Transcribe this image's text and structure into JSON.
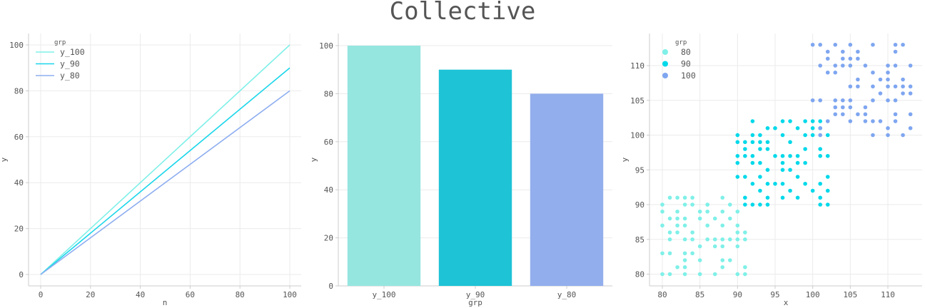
{
  "title": "Collective",
  "colors": {
    "y_100": "#7ff0e8",
    "y_90": "#1ad6ea",
    "y_80": "#8eaef0"
  },
  "chart_data": [
    {
      "type": "line",
      "xlabel": "n",
      "ylabel": "y",
      "xlim": [
        -5,
        105
      ],
      "ylim": [
        -5,
        105
      ],
      "xticks": [
        0,
        20,
        40,
        60,
        80,
        100
      ],
      "yticks": [
        0,
        20,
        40,
        60,
        80,
        100
      ],
      "grid": true,
      "legend": {
        "title": "grp",
        "position": "top-left"
      },
      "series": [
        {
          "name": "y_100",
          "x": [
            0,
            100
          ],
          "y": [
            0,
            100
          ],
          "color": "#7ff0e8"
        },
        {
          "name": "y_90",
          "x": [
            0,
            100
          ],
          "y": [
            0,
            90
          ],
          "color": "#1ad6ea"
        },
        {
          "name": "y_80",
          "x": [
            0,
            100
          ],
          "y": [
            0,
            80
          ],
          "color": "#8eaef0"
        }
      ]
    },
    {
      "type": "bar",
      "xlabel": "grp",
      "ylabel": "y",
      "categories": [
        "y_100",
        "y_90",
        "y_80"
      ],
      "values": [
        100,
        90,
        80
      ],
      "colors": [
        "#96e6e0",
        "#1ec3d6",
        "#92aeec"
      ],
      "ylim": [
        0,
        105
      ],
      "yticks": [
        0,
        20,
        40,
        60,
        80,
        100
      ],
      "grid": true
    },
    {
      "type": "scatter",
      "xlabel": "x",
      "ylabel": "y",
      "xlim": [
        78.5,
        115
      ],
      "ylim": [
        78.5,
        114.5
      ],
      "xticks": [
        80,
        85,
        90,
        95,
        100,
        105,
        110
      ],
      "yticks": [
        80,
        85,
        90,
        95,
        100,
        105,
        110
      ],
      "grid": true,
      "legend": {
        "title": "grp",
        "position": "top-left"
      },
      "series": [
        {
          "name": "80",
          "color": "#7ff0e8",
          "points": [
            [
              80,
              80
            ],
            [
              81,
              80
            ],
            [
              83,
              80
            ],
            [
              85,
              80
            ],
            [
              87,
              80
            ],
            [
              90,
              80
            ],
            [
              91,
              80
            ],
            [
              82,
              81
            ],
            [
              83,
              81
            ],
            [
              88,
              81
            ],
            [
              91,
              81
            ],
            [
              83,
              82
            ],
            [
              85,
              82
            ],
            [
              88,
              82
            ],
            [
              89,
              82
            ],
            [
              80,
              83
            ],
            [
              81,
              83
            ],
            [
              83,
              83
            ],
            [
              84,
              83
            ],
            [
              85,
              84
            ],
            [
              87,
              84
            ],
            [
              88,
              84
            ],
            [
              90,
              84
            ],
            [
              81,
              85
            ],
            [
              83,
              85
            ],
            [
              84,
              85
            ],
            [
              86,
              85
            ],
            [
              87,
              85
            ],
            [
              88,
              85
            ],
            [
              89,
              85
            ],
            [
              90,
              85
            ],
            [
              91,
              85
            ],
            [
              81,
              86
            ],
            [
              82,
              86
            ],
            [
              84,
              86
            ],
            [
              90,
              86
            ],
            [
              91,
              86
            ],
            [
              80,
              87
            ],
            [
              82,
              87
            ],
            [
              83,
              87
            ],
            [
              86,
              87
            ],
            [
              88,
              87
            ],
            [
              90,
              87
            ],
            [
              81,
              88
            ],
            [
              82,
              88
            ],
            [
              83,
              88
            ],
            [
              85,
              88
            ],
            [
              87,
              88
            ],
            [
              89,
              88
            ],
            [
              80,
              89
            ],
            [
              82,
              89
            ],
            [
              85,
              89
            ],
            [
              86,
              89
            ],
            [
              88,
              89
            ],
            [
              90,
              89
            ],
            [
              80,
              90
            ],
            [
              83,
              90
            ],
            [
              84,
              90
            ],
            [
              86,
              90
            ],
            [
              81,
              91
            ],
            [
              82,
              91
            ],
            [
              83,
              91
            ],
            [
              84,
              91
            ],
            [
              88,
              91
            ],
            [
              86,
              90
            ],
            [
              89,
              90
            ]
          ]
        },
        {
          "name": "90",
          "color": "#00d9ea",
          "points": [
            [
              91,
              90
            ],
            [
              92,
              90
            ],
            [
              93,
              90
            ],
            [
              94,
              90
            ],
            [
              101,
              90
            ],
            [
              102,
              90
            ],
            [
              91,
              91
            ],
            [
              94,
              91
            ],
            [
              96,
              91
            ],
            [
              98,
              91
            ],
            [
              101,
              91
            ],
            [
              93,
              92
            ],
            [
              97,
              92
            ],
            [
              100,
              92
            ],
            [
              102,
              92
            ],
            [
              92,
              93
            ],
            [
              94,
              93
            ],
            [
              95,
              93
            ],
            [
              96,
              93
            ],
            [
              99,
              93
            ],
            [
              101,
              93
            ],
            [
              90,
              94
            ],
            [
              91,
              94
            ],
            [
              93,
              94
            ],
            [
              98,
              94
            ],
            [
              102,
              94
            ],
            [
              94,
              95
            ],
            [
              96,
              95
            ],
            [
              97,
              95
            ],
            [
              90,
              96
            ],
            [
              92,
              96
            ],
            [
              93,
              96
            ],
            [
              96,
              96
            ],
            [
              98,
              96
            ],
            [
              99,
              96
            ],
            [
              90,
              97
            ],
            [
              91,
              97
            ],
            [
              92,
              97
            ],
            [
              95,
              97
            ],
            [
              96,
              97
            ],
            [
              97,
              97
            ],
            [
              98,
              97
            ],
            [
              101,
              97
            ],
            [
              102,
              97
            ],
            [
              91,
              98
            ],
            [
              93,
              98
            ],
            [
              94,
              98
            ],
            [
              99,
              98
            ],
            [
              101,
              98
            ],
            [
              90,
              99
            ],
            [
              91,
              99
            ],
            [
              92,
              99
            ],
            [
              93,
              99
            ],
            [
              94,
              99
            ],
            [
              97,
              99
            ],
            [
              90,
              100
            ],
            [
              92,
              100
            ],
            [
              93,
              100
            ],
            [
              96,
              100
            ],
            [
              99,
              100
            ],
            [
              100,
              100
            ],
            [
              102,
              100
            ],
            [
              94,
              101
            ],
            [
              95,
              101
            ],
            [
              98,
              101
            ],
            [
              100,
              101
            ],
            [
              101,
              101
            ],
            [
              92,
              102
            ],
            [
              96,
              102
            ],
            [
              97,
              102
            ],
            [
              99,
              102
            ],
            [
              100,
              102
            ],
            [
              101,
              102
            ]
          ]
        },
        {
          "name": "100",
          "color": "#7fa6f0",
          "points": [
            [
              100,
              113
            ],
            [
              101,
              113
            ],
            [
              103,
              113
            ],
            [
              105,
              113
            ],
            [
              108,
              113
            ],
            [
              111,
              113
            ],
            [
              112,
              113
            ],
            [
              102,
              112
            ],
            [
              104,
              112
            ],
            [
              106,
              112
            ],
            [
              111,
              112
            ],
            [
              102,
              111
            ],
            [
              104,
              111
            ],
            [
              105,
              111
            ],
            [
              106,
              111
            ],
            [
              101,
              110
            ],
            [
              103,
              110
            ],
            [
              104,
              110
            ],
            [
              105,
              110
            ],
            [
              107,
              110
            ],
            [
              110,
              110
            ],
            [
              111,
              110
            ],
            [
              113,
              110
            ],
            [
              102,
              109
            ],
            [
              103,
              109
            ],
            [
              108,
              109
            ],
            [
              110,
              109
            ],
            [
              106,
              108
            ],
            [
              109,
              108
            ],
            [
              110,
              108
            ],
            [
              112,
              108
            ],
            [
              105,
              107
            ],
            [
              106,
              107
            ],
            [
              108,
              107
            ],
            [
              110,
              107
            ],
            [
              111,
              107
            ],
            [
              112,
              107
            ],
            [
              113,
              107
            ],
            [
              109,
              106
            ],
            [
              112,
              106
            ],
            [
              113,
              106
            ],
            [
              100,
              105
            ],
            [
              101,
              105
            ],
            [
              103,
              105
            ],
            [
              104,
              105
            ],
            [
              105,
              105
            ],
            [
              108,
              105
            ],
            [
              110,
              105
            ],
            [
              111,
              105
            ],
            [
              103,
              104
            ],
            [
              104,
              104
            ],
            [
              105,
              104
            ],
            [
              107,
              104
            ],
            [
              103,
              103
            ],
            [
              104,
              103
            ],
            [
              106,
              103
            ],
            [
              107,
              103
            ],
            [
              111,
              103
            ],
            [
              113,
              103
            ],
            [
              102,
              102
            ],
            [
              105,
              102
            ],
            [
              107,
              102
            ],
            [
              108,
              102
            ],
            [
              109,
              102
            ],
            [
              111,
              102
            ],
            [
              101,
              101
            ],
            [
              110,
              101
            ],
            [
              113,
              101
            ],
            [
              101,
              100
            ],
            [
              108,
              100
            ],
            [
              110,
              100
            ],
            [
              112,
              100
            ]
          ]
        }
      ]
    }
  ]
}
